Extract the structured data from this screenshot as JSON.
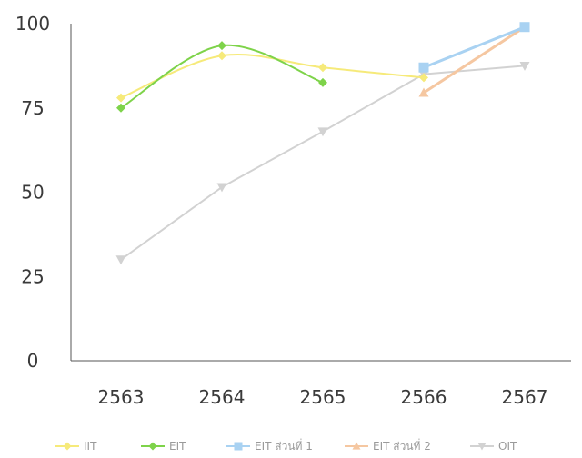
{
  "chart_data": {
    "type": "line",
    "title": "",
    "xlabel": "",
    "ylabel": "",
    "categories": [
      "2563",
      "2564",
      "2565",
      "2566",
      "2567"
    ],
    "ylim": [
      0,
      100
    ],
    "yticks": [
      0,
      25,
      50,
      75,
      100
    ],
    "grid": false,
    "legend_position": "bottom",
    "series": [
      {
        "name": "IIT",
        "color": "#f6ea7a",
        "marker": "diamond",
        "smooth": true,
        "values": [
          78,
          90.5,
          87,
          84,
          null
        ]
      },
      {
        "name": "EIT",
        "color": "#7ed34a",
        "marker": "diamond",
        "smooth": true,
        "values": [
          75,
          93.5,
          82.5,
          null,
          null
        ]
      },
      {
        "name": "EIT ส่วนที่ 1",
        "color": "#a9d2f2",
        "marker": "square",
        "smooth": false,
        "values": [
          null,
          null,
          null,
          87,
          99
        ]
      },
      {
        "name": "EIT ส่วนที่ 2",
        "color": "#f5c7a1",
        "marker": "triangle-up",
        "smooth": false,
        "values": [
          null,
          null,
          null,
          79.5,
          99
        ]
      },
      {
        "name": "OIT",
        "color": "#d2d2d2",
        "marker": "triangle-down",
        "smooth": false,
        "values": [
          30,
          51.5,
          68,
          85,
          87.5
        ]
      }
    ]
  }
}
